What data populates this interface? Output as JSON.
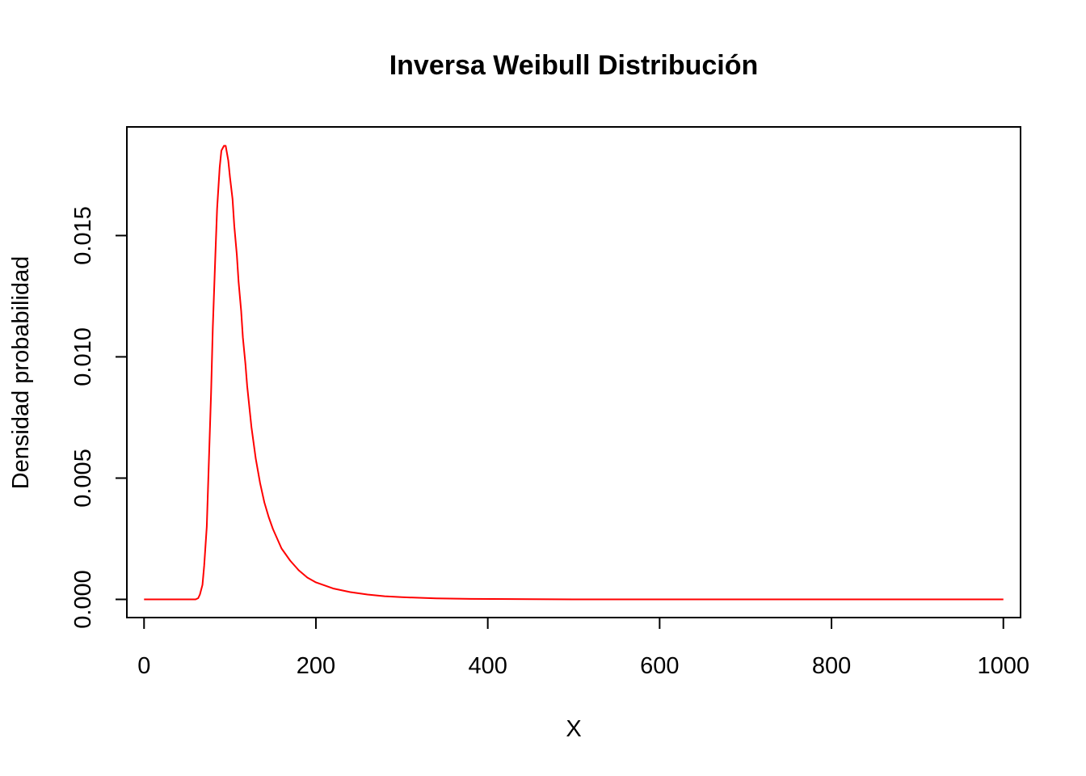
{
  "chart_data": {
    "type": "line",
    "title": "Inversa Weibull Distribución",
    "xlabel": "X",
    "ylabel": "Densidad probabilidad",
    "xlim": [
      -20,
      1020
    ],
    "ylim": [
      -0.00075,
      0.01948
    ],
    "x_ticks": [
      0,
      200,
      400,
      600,
      800,
      1000
    ],
    "x_tick_labels": [
      "0",
      "200",
      "400",
      "600",
      "800",
      "1000"
    ],
    "y_ticks": [
      0.0,
      0.005,
      0.01,
      0.015
    ],
    "y_tick_labels": [
      "0.000",
      "0.005",
      "0.010",
      "0.015"
    ],
    "grid": false,
    "legend": "none",
    "series": [
      {
        "color": "#ff0000",
        "x": [
          0,
          50,
          60,
          63,
          65,
          68,
          70,
          73,
          75,
          78,
          80,
          83,
          85,
          88,
          90,
          93,
          95,
          98,
          100,
          103,
          105,
          108,
          110,
          113,
          115,
          118,
          120,
          125,
          130,
          135,
          140,
          145,
          150,
          160,
          170,
          180,
          190,
          200,
          220,
          240,
          260,
          280,
          300,
          340,
          380,
          450,
          500,
          600,
          700,
          800,
          900,
          1000
        ],
        "y": [
          0.0,
          0.0,
          0.0,
          5e-05,
          0.0002,
          0.0006,
          0.0014,
          0.003,
          0.0052,
          0.0085,
          0.0112,
          0.0142,
          0.0161,
          0.0178,
          0.0185,
          0.0187,
          0.0187,
          0.0181,
          0.0174,
          0.0165,
          0.0154,
          0.0142,
          0.0131,
          0.0119,
          0.0108,
          0.0097,
          0.0088,
          0.0071,
          0.0058,
          0.0048,
          0.004,
          0.0034,
          0.0029,
          0.0021,
          0.0016,
          0.0012,
          0.0009,
          0.0007,
          0.00045,
          0.0003,
          0.0002,
          0.00013,
          9e-05,
          4e-05,
          2e-05,
          1e-05,
          0.0,
          0.0,
          0.0,
          0.0,
          0.0,
          0.0
        ]
      }
    ]
  }
}
